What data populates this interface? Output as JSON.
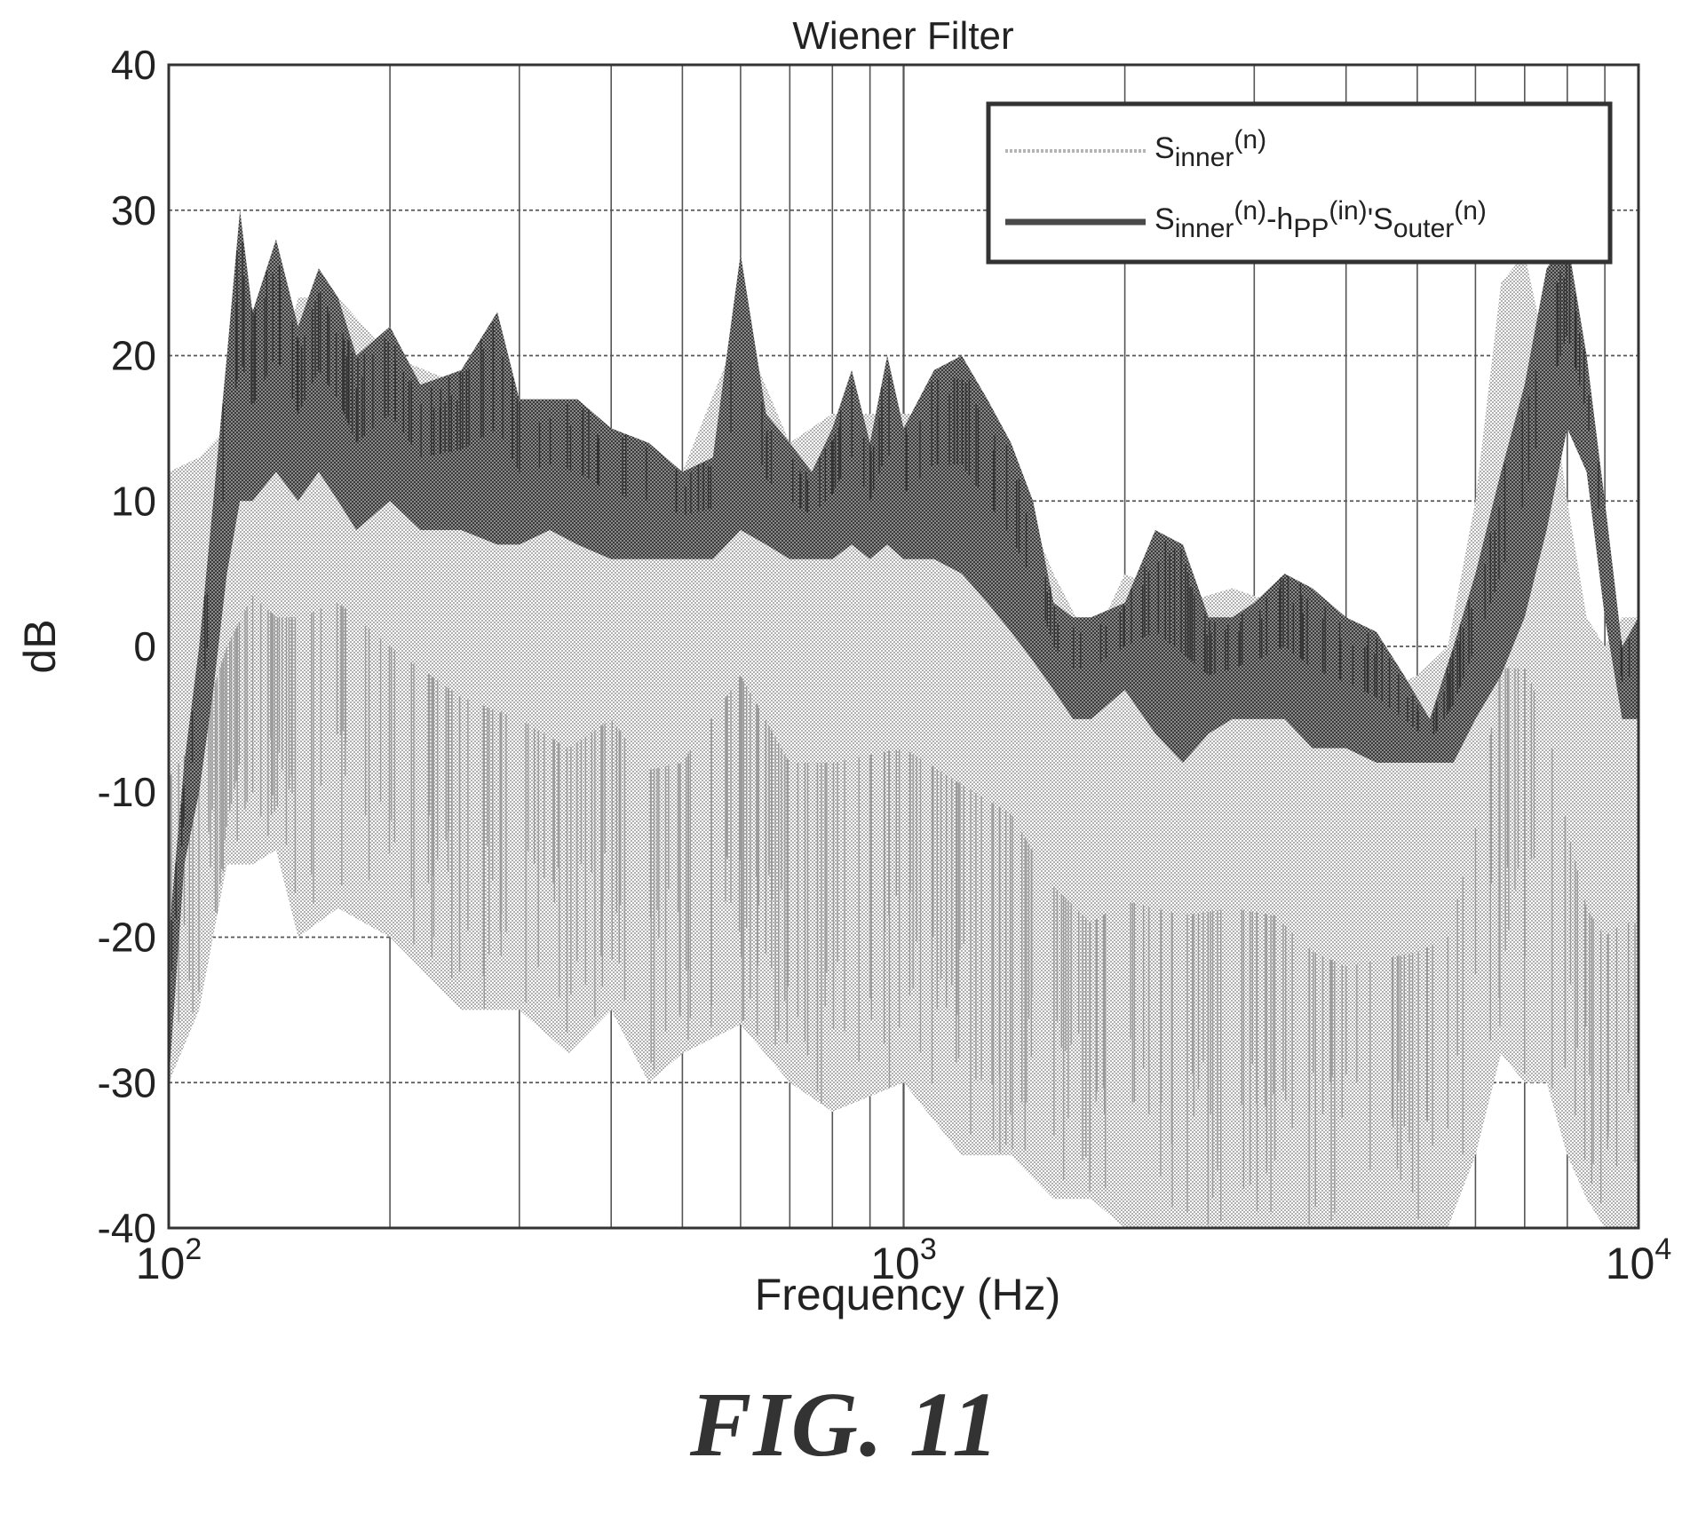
{
  "figure_caption": "FIG. 11",
  "chart_data": {
    "type": "line",
    "title": "Wiener Filter",
    "xlabel": "Frequency (Hz)",
    "ylabel": "dB",
    "xscale": "log",
    "xlim": [
      100,
      10000
    ],
    "ylim": [
      -40,
      40
    ],
    "x_ticks": [
      {
        "value": 100,
        "base": "10",
        "exp": "2"
      },
      {
        "value": 1000,
        "base": "10",
        "exp": "3"
      },
      {
        "value": 10000,
        "base": "10",
        "exp": "4"
      }
    ],
    "y_ticks": [
      {
        "value": 40,
        "label": "40"
      },
      {
        "value": 30,
        "label": "30"
      },
      {
        "value": 20,
        "label": "20"
      },
      {
        "value": 10,
        "label": "10"
      },
      {
        "value": 0,
        "label": "0"
      },
      {
        "value": -10,
        "label": "-10"
      },
      {
        "value": -20,
        "label": "-20"
      },
      {
        "value": -30,
        "label": "-30"
      },
      {
        "value": -40,
        "label": "-40"
      }
    ],
    "grid": true,
    "legend_position": "top-right",
    "colors": {
      "series_1": "#b4b4b4",
      "series_2": "#4a4a4a",
      "grid": "#555555",
      "axes": "#333333"
    },
    "series": [
      {
        "legend_parts": [
          {
            "t": "S",
            "s": "base"
          },
          {
            "t": "inner",
            "s": "sub"
          },
          {
            "t": "(n)",
            "s": "sup"
          }
        ],
        "x": [
          100,
          110,
          120,
          130,
          140,
          150,
          170,
          200,
          250,
          300,
          350,
          400,
          450,
          500,
          600,
          700,
          800,
          1000,
          1200,
          1400,
          1600,
          1800,
          2000,
          2400,
          2800,
          3200,
          3600,
          4000,
          4500,
          5000,
          5500,
          6000,
          6500,
          7000,
          7500,
          8000,
          8500,
          9000,
          9500,
          10000
        ],
        "upper": [
          12,
          13,
          15,
          22,
          18,
          24,
          24,
          20,
          18,
          15,
          14,
          15,
          13,
          12,
          22,
          14,
          16,
          16,
          16,
          12,
          5,
          0,
          5,
          3,
          4,
          3,
          -2,
          -4,
          -3,
          -2,
          0,
          10,
          25,
          27,
          20,
          10,
          2,
          0,
          2,
          2
        ],
        "lower": [
          -30,
          -25,
          -15,
          -15,
          -14,
          -20,
          -18,
          -20,
          -25,
          -25,
          -28,
          -25,
          -30,
          -28,
          -26,
          -30,
          -32,
          -30,
          -35,
          -35,
          -38,
          -38,
          -40,
          -40,
          -40,
          -40,
          -40,
          -40,
          -40,
          -40,
          -40,
          -35,
          -28,
          -30,
          -30,
          -35,
          -38,
          -40,
          -40,
          -40
        ]
      },
      {
        "legend_parts": [
          {
            "t": "S",
            "s": "base"
          },
          {
            "t": "inner",
            "s": "sub"
          },
          {
            "t": "(n)",
            "s": "sup"
          },
          {
            "t": "-h",
            "s": "base"
          },
          {
            "t": "PP",
            "s": "sub"
          },
          {
            "t": "(in)",
            "s": "sup"
          },
          {
            "t": "'S",
            "s": "base"
          },
          {
            "t": "outer",
            "s": "sub"
          },
          {
            "t": "(n)",
            "s": "sup"
          }
        ],
        "x": [
          100,
          105,
          110,
          115,
          120,
          125,
          130,
          140,
          150,
          160,
          170,
          180,
          200,
          220,
          250,
          280,
          300,
          330,
          360,
          400,
          450,
          500,
          550,
          600,
          650,
          700,
          750,
          800,
          850,
          900,
          950,
          1000,
          1100,
          1200,
          1300,
          1400,
          1500,
          1600,
          1700,
          1800,
          2000,
          2200,
          2400,
          2600,
          2800,
          3000,
          3300,
          3600,
          4000,
          4400,
          4800,
          5200,
          5600,
          6000,
          6500,
          7000,
          7500,
          8000,
          8500,
          9000,
          9500,
          10000
        ],
        "upper": [
          -20,
          -8,
          0,
          10,
          20,
          30,
          23,
          28,
          22,
          26,
          24,
          20,
          22,
          18,
          19,
          23,
          17,
          17,
          17,
          15,
          14,
          12,
          13,
          27,
          16,
          14,
          12,
          15,
          19,
          14,
          20,
          15,
          19,
          20,
          17,
          14,
          10,
          3,
          2,
          2,
          3,
          8,
          7,
          2,
          2,
          3,
          5,
          4,
          2,
          1,
          -2,
          -5,
          0,
          5,
          12,
          18,
          26,
          28,
          20,
          10,
          0,
          2
        ],
        "lower": [
          -30,
          -15,
          -10,
          -3,
          5,
          10,
          10,
          12,
          10,
          12,
          10,
          8,
          10,
          8,
          8,
          7,
          7,
          8,
          7,
          6,
          6,
          6,
          6,
          8,
          7,
          6,
          6,
          6,
          7,
          6,
          7,
          6,
          6,
          5,
          3,
          1,
          -1,
          -3,
          -5,
          -5,
          -3,
          -6,
          -8,
          -6,
          -5,
          -5,
          -5,
          -7,
          -7,
          -8,
          -8,
          -8,
          -8,
          -5,
          -2,
          2,
          8,
          15,
          12,
          2,
          -5,
          -5
        ]
      }
    ]
  }
}
